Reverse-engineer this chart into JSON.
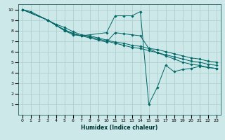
{
  "xlabel": "Humidex (Indice chaleur)",
  "bg_color": "#cce8e8",
  "grid_color": "#aacccc",
  "line_color": "#006666",
  "xlim": [
    -0.5,
    23.5
  ],
  "ylim": [
    0,
    10.5
  ],
  "xticks": [
    0,
    1,
    2,
    3,
    4,
    5,
    6,
    7,
    8,
    9,
    10,
    11,
    12,
    13,
    14,
    15,
    16,
    17,
    18,
    19,
    20,
    21,
    22,
    23
  ],
  "yticks": [
    1,
    2,
    3,
    4,
    5,
    6,
    7,
    8,
    9,
    10
  ],
  "series": [
    {
      "x": [
        0,
        1,
        3,
        4,
        5,
        6,
        7,
        8,
        9,
        10,
        11,
        12,
        13,
        14,
        15,
        16,
        17,
        18,
        19,
        20,
        21,
        22,
        23
      ],
      "y": [
        10,
        9.8,
        9.0,
        8.6,
        8.3,
        7.9,
        7.6,
        7.5,
        7.3,
        7.1,
        6.9,
        6.8,
        6.6,
        6.5,
        6.3,
        6.2,
        6.0,
        5.8,
        5.6,
        5.4,
        5.3,
        5.1,
        5.0
      ]
    },
    {
      "x": [
        0,
        3,
        4,
        5,
        6,
        7,
        8,
        9,
        10,
        11,
        12,
        13,
        14,
        15,
        16,
        17,
        18,
        19,
        20,
        21,
        22,
        23
      ],
      "y": [
        10,
        9.0,
        8.5,
        8.1,
        7.7,
        7.5,
        7.4,
        7.2,
        7.0,
        6.8,
        6.6,
        6.4,
        6.3,
        6.1,
        5.9,
        5.7,
        5.5,
        5.3,
        5.1,
        5.0,
        4.8,
        4.7
      ]
    },
    {
      "x": [
        0,
        3,
        5,
        7,
        10,
        11,
        12,
        13,
        14,
        15,
        16,
        17,
        18,
        19,
        20,
        21,
        22,
        23
      ],
      "y": [
        10,
        9.0,
        8.0,
        7.5,
        7.8,
        9.4,
        9.4,
        9.4,
        9.8,
        1.0,
        2.6,
        4.7,
        4.1,
        4.3,
        4.4,
        4.6,
        4.5,
        4.4
      ]
    },
    {
      "x": [
        0,
        3,
        4,
        5,
        6,
        7,
        8,
        9,
        10,
        11,
        12,
        13,
        14,
        15,
        16,
        17,
        18,
        19,
        20,
        21,
        22,
        23
      ],
      "y": [
        10,
        9.0,
        8.5,
        8.0,
        7.6,
        7.5,
        7.3,
        7.1,
        6.9,
        7.8,
        7.7,
        7.6,
        7.5,
        6.3,
        5.9,
        5.6,
        5.3,
        5.0,
        4.8,
        4.7,
        4.5,
        4.4
      ]
    }
  ]
}
